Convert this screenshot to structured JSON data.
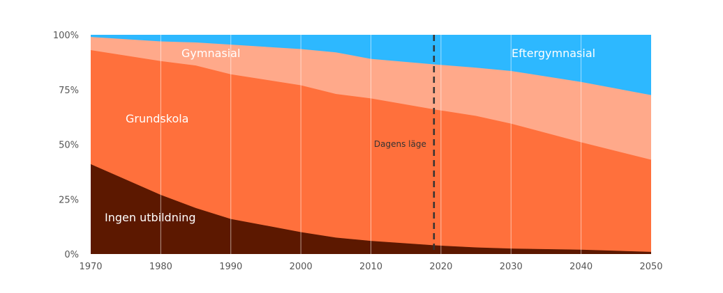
{
  "chart_data": {
    "type": "area",
    "stacked": true,
    "normalized": true,
    "x": [
      1970,
      1980,
      1985,
      1990,
      2000,
      2005,
      2010,
      2019,
      2025,
      2030,
      2040,
      2050
    ],
    "series": [
      {
        "name": "Ingen utbildning",
        "color": "#5c1800",
        "values": [
          41,
          27,
          21,
          16,
          10,
          7.5,
          6,
          4,
          3,
          2.5,
          2,
          1
        ]
      },
      {
        "name": "Grundskola",
        "color": "#ff703c",
        "values": [
          52,
          61,
          65,
          66,
          67,
          65.5,
          65,
          62,
          60,
          57,
          49,
          42
        ]
      },
      {
        "name": "Gymnasial",
        "color": "#ffa98a",
        "values": [
          6,
          9,
          10.5,
          13.5,
          16.5,
          19,
          18,
          20.5,
          22,
          24,
          27.5,
          29.5
        ]
      },
      {
        "name": "Eftergymnasial",
        "color": "#2db8ff",
        "values": [
          1,
          3,
          3.5,
          4.5,
          6.5,
          8,
          11,
          13.5,
          15,
          16.5,
          21.5,
          27.5
        ]
      }
    ],
    "x_ticks": [
      "1970",
      "1980",
      "1990",
      "2000",
      "2010",
      "2020",
      "2030",
      "2040",
      "2050"
    ],
    "y_ticks": [
      "0%",
      "25%",
      "50%",
      "75%",
      "100%"
    ],
    "xlim": [
      1970,
      2050
    ],
    "ylim": [
      0,
      100
    ],
    "grid": "vertical",
    "legend": "inline",
    "annotation": {
      "label": "Dagens läge",
      "x": 2019,
      "style": "dashed-vertical-line"
    },
    "title": "",
    "xlabel": "",
    "ylabel": ""
  }
}
